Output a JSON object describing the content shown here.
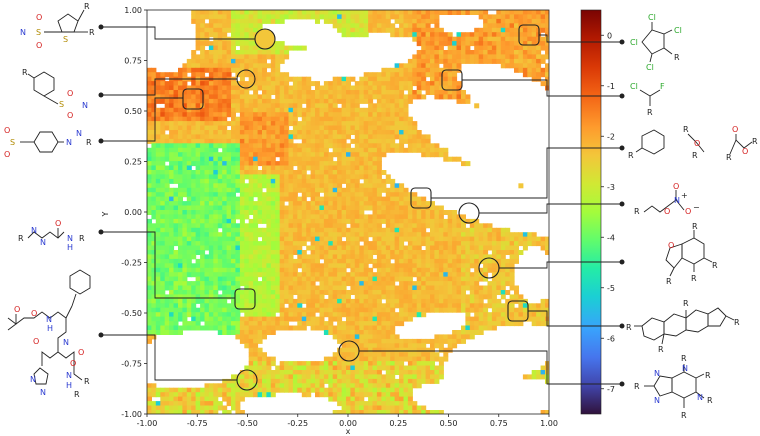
{
  "chart_data": {
    "type": "heatmap",
    "title": "",
    "xlabel": "x",
    "ylabel": "Y",
    "xlim": [
      -1.0,
      1.0
    ],
    "ylim": [
      -1.0,
      1.0
    ],
    "x_ticks": [
      "-1.00",
      "-0.75",
      "-0.50",
      "-0.25",
      "0.00",
      "0.25",
      "0.50",
      "0.75",
      "1.00"
    ],
    "y_ticks": [
      "1.00",
      "0.75",
      "0.50",
      "0.25",
      "0.00",
      "-0.25",
      "-0.50",
      "-0.75",
      "-1.00"
    ],
    "colorbar": {
      "range": [
        -7.5,
        0.5
      ],
      "ticks": [
        "0",
        "-1",
        "-2",
        "-3",
        "-4",
        "-5",
        "-6",
        "-7"
      ],
      "colormap": [
        "#30123b",
        "#4145ab",
        "#4675ed",
        "#39a2fc",
        "#1bcfd4",
        "#24eca6",
        "#61fc6c",
        "#a4fc3b",
        "#d1e834",
        "#f3c63a",
        "#fe9b2d",
        "#f36315",
        "#d93806",
        "#b11901",
        "#7a0402"
      ]
    },
    "highlights": [
      {
        "x": -0.42,
        "y": 0.93,
        "label": "thiophene sulfonyl imine"
      },
      {
        "x": -0.5,
        "y": 0.68,
        "label": "aryl sulfonyl imine"
      },
      {
        "x": -0.78,
        "y": 0.55,
        "label": "aryl sulfonyl imine"
      },
      {
        "x": -0.5,
        "y": -0.43,
        "label": "carbonyl diazene"
      },
      {
        "x": 0.0,
        "y": -0.69,
        "label": "protected tripeptide"
      },
      {
        "x": -0.5,
        "y": -0.83,
        "label": "protected tripeptide"
      },
      {
        "x": 0.88,
        "y": 0.95,
        "label": "tetrachlorocyclopentadiene"
      },
      {
        "x": 0.5,
        "y": 0.67,
        "label": "chlorofluoroalkane"
      },
      {
        "x": 0.36,
        "y": 0.07,
        "label": "benzene / ether / ester"
      },
      {
        "x": 0.59,
        "y": -0.01,
        "label": "nitrate ester"
      },
      {
        "x": 0.69,
        "y": -0.28,
        "label": "benzofuranone"
      },
      {
        "x": 0.84,
        "y": -0.5,
        "label": "steroid scaffold"
      }
    ]
  },
  "structures": {
    "thiophene_sulfonyl_imine": {
      "labels": [
        "R",
        "R",
        "O",
        "O",
        "S",
        "N",
        "S"
      ]
    },
    "aryl_sulfonyl_imine": {
      "labels": [
        "R",
        "S",
        "O",
        "O",
        "N"
      ]
    },
    "aryl_azo_sulfone": {
      "labels": [
        "O",
        "S",
        "O",
        "N",
        "N",
        "R"
      ]
    },
    "carbonyl_diazene": {
      "labels": [
        "R",
        "N",
        "N",
        "O",
        "N",
        "H",
        "R"
      ]
    },
    "protected_tripeptide": {
      "labels": [
        "O",
        "O",
        "N",
        "H",
        "O",
        "N",
        "O",
        "N",
        "N",
        "N",
        "H",
        "O",
        "R",
        "R"
      ]
    },
    "tetrachloro_diene": {
      "labels": [
        "Cl",
        "Cl",
        "Cl",
        "Cl",
        "R"
      ]
    },
    "chlorofluoro": {
      "labels": [
        "Cl",
        "F",
        "R"
      ]
    },
    "benzene": {
      "labels": [
        "R"
      ]
    },
    "ether": {
      "labels": [
        "R",
        "O",
        "R"
      ]
    },
    "ester": {
      "labels": [
        "O",
        "R",
        "O",
        "R"
      ]
    },
    "nitrate": {
      "labels": [
        "R",
        "O",
        "N",
        "+",
        "O",
        "O",
        "−"
      ]
    },
    "benzofuranone": {
      "labels": [
        "O",
        "R",
        "R",
        "R",
        "R"
      ]
    },
    "steroid": {
      "labels": [
        "R",
        "R",
        "R",
        "R"
      ]
    },
    "purine": {
      "labels": [
        "R",
        "N",
        "N",
        "R",
        "N",
        "R",
        "N",
        "R",
        "R"
      ]
    }
  }
}
